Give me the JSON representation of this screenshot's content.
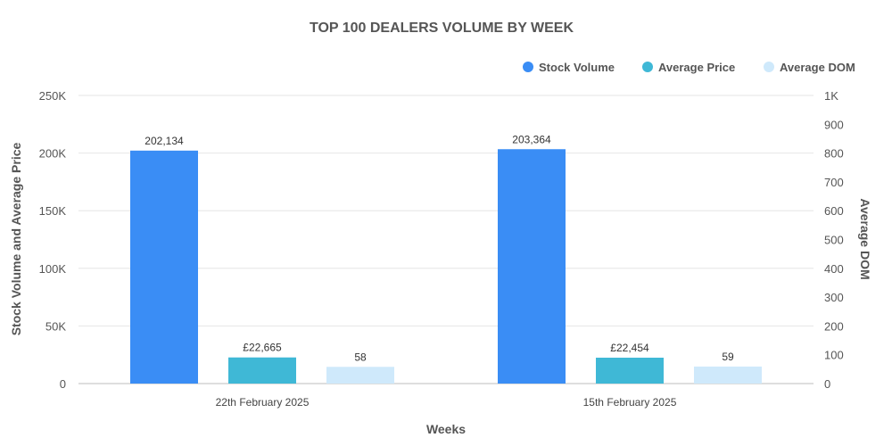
{
  "chart_data": {
    "type": "bar",
    "title": "TOP 100 DEALERS VOLUME BY WEEK",
    "xlabel": "Weeks",
    "ylabel_left": "Stock Volume and Average Price",
    "ylabel_right": "Average DOM",
    "categories": [
      "22th February 2025",
      "15th February 2025"
    ],
    "series": [
      {
        "name": "Stock Volume",
        "axis": "left",
        "color": "#3a8df5",
        "values": [
          202134,
          203364
        ],
        "labels": [
          "202,134",
          "203,364"
        ]
      },
      {
        "name": "Average Price",
        "axis": "left",
        "color": "#3fb8d6",
        "values": [
          22665,
          22454
        ],
        "labels": [
          "£22,665",
          "£22,454"
        ]
      },
      {
        "name": "Average DOM",
        "axis": "right",
        "color": "#cfe9fb",
        "values": [
          58,
          59
        ],
        "labels": [
          "58",
          "59"
        ]
      }
    ],
    "ylim_left": [
      0,
      250000
    ],
    "yticks_left": [
      "0",
      "50K",
      "100K",
      "150K",
      "200K",
      "250K"
    ],
    "ylim_right": [
      0,
      1000
    ],
    "yticks_right": [
      "0",
      "100",
      "200",
      "300",
      "400",
      "500",
      "600",
      "700",
      "800",
      "900",
      "1K"
    ],
    "grid": true,
    "legend_position": "top-right"
  }
}
